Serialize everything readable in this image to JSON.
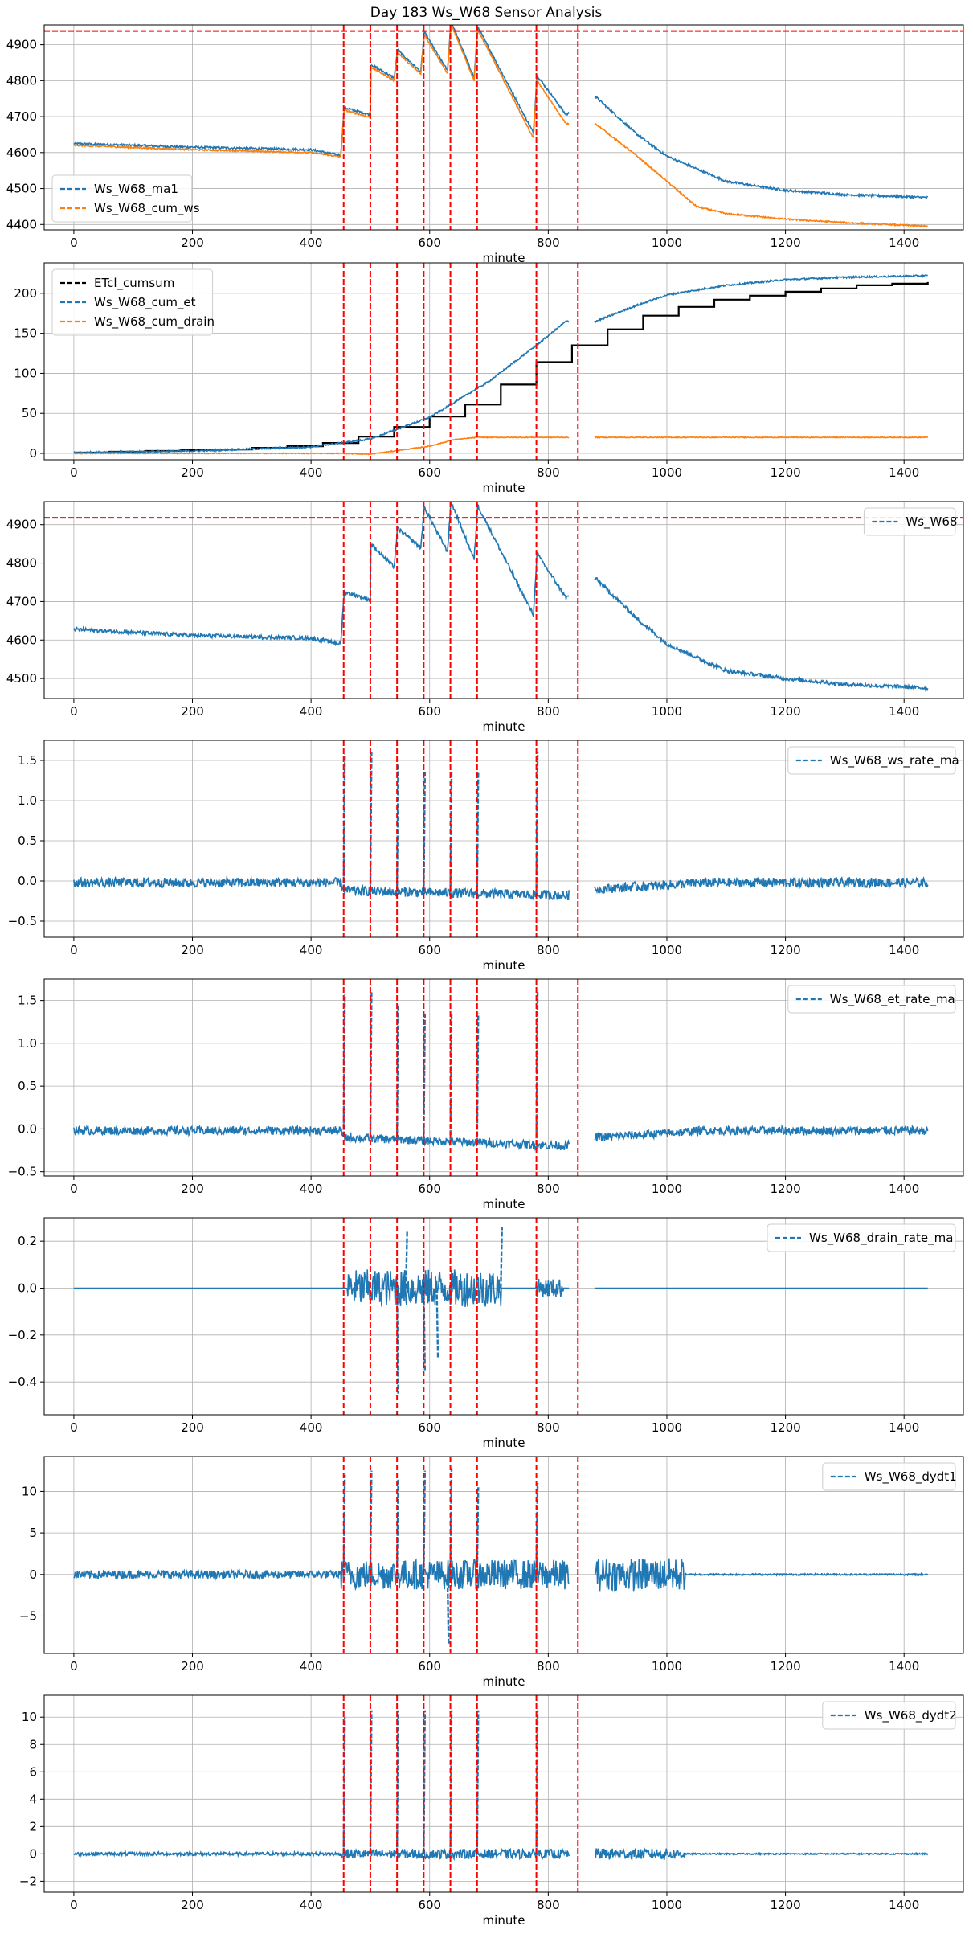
{
  "figure": {
    "title": "Day 183 Ws_W68 Sensor Analysis",
    "colors": {
      "blue": "#1f77b4",
      "orange": "#ff7f0e",
      "black": "#000000",
      "red": "#ff0000",
      "grid": "#b0b0b0"
    }
  },
  "chart_data": [
    {
      "type": "line",
      "id": "p1",
      "xlabel": "minute",
      "xlim": [
        -50,
        1500
      ],
      "ylim": [
        4385,
        4955
      ],
      "xticks": [
        0,
        200,
        400,
        600,
        800,
        1000,
        1200,
        1400
      ],
      "yticks": [
        4400,
        4500,
        4600,
        4700,
        4800,
        4900
      ],
      "legend_position": "lower-left",
      "vlines": [
        455,
        500,
        545,
        590,
        635,
        680,
        780,
        850
      ],
      "hlines": [
        4938
      ],
      "series": [
        {
          "name": "Ws_W68_ma1",
          "color": "#1f77b4",
          "noise": 3,
          "points": [
            [
              0,
              4625
            ],
            [
              200,
              4615
            ],
            [
              400,
              4608
            ],
            [
              450,
              4592
            ],
            [
              456,
              4725
            ],
            [
              500,
              4705
            ],
            [
              501,
              4845
            ],
            [
              540,
              4808
            ],
            [
              546,
              4885
            ],
            [
              585,
              4825
            ],
            [
              591,
              4935
            ],
            [
              630,
              4828
            ],
            [
              636,
              4965
            ],
            [
              675,
              4808
            ],
            [
              681,
              4950
            ],
            [
              775,
              4655
            ],
            [
              781,
              4815
            ],
            [
              830,
              4705
            ],
            [
              880,
              4755
            ],
            [
              950,
              4650
            ],
            [
              1000,
              4590
            ],
            [
              1100,
              4520
            ],
            [
              1200,
              4495
            ],
            [
              1300,
              4483
            ],
            [
              1440,
              4475
            ]
          ]
        },
        {
          "name": "Ws_W68_cum_ws",
          "color": "#ff7f0e",
          "noise": 2,
          "points": [
            [
              0,
              4620
            ],
            [
              200,
              4608
            ],
            [
              400,
              4600
            ],
            [
              450,
              4588
            ],
            [
              456,
              4718
            ],
            [
              500,
              4698
            ],
            [
              501,
              4838
            ],
            [
              540,
              4800
            ],
            [
              546,
              4878
            ],
            [
              585,
              4818
            ],
            [
              591,
              4928
            ],
            [
              630,
              4820
            ],
            [
              636,
              4958
            ],
            [
              675,
              4800
            ],
            [
              681,
              4942
            ],
            [
              775,
              4640
            ],
            [
              781,
              4800
            ],
            [
              830,
              4680
            ],
            [
              880,
              4680
            ],
            [
              950,
              4590
            ],
            [
              1000,
              4520
            ],
            [
              1050,
              4450
            ],
            [
              1100,
              4430
            ],
            [
              1200,
              4415
            ],
            [
              1300,
              4405
            ],
            [
              1440,
              4395
            ]
          ]
        }
      ]
    },
    {
      "type": "line",
      "id": "p2",
      "xlabel": "minute",
      "xlim": [
        -50,
        1500
      ],
      "ylim": [
        -8,
        238
      ],
      "xticks": [
        0,
        200,
        400,
        600,
        800,
        1000,
        1200,
        1400
      ],
      "yticks": [
        0,
        50,
        100,
        150,
        200
      ],
      "legend_position": "upper-left",
      "vlines": [
        455,
        500,
        545,
        590,
        635,
        680,
        780,
        850
      ],
      "hlines": [],
      "series": [
        {
          "name": "ETcl_cumsum",
          "color": "#000000",
          "step": true,
          "x": [
            0,
            60,
            120,
            180,
            240,
            300,
            360,
            420,
            480,
            540,
            600,
            660,
            720,
            780,
            840,
            900,
            960,
            1020,
            1080,
            1140,
            1200,
            1260,
            1320,
            1380,
            1440
          ],
          "values": [
            1,
            2,
            3,
            4,
            5,
            7,
            9,
            13,
            21,
            33,
            46,
            61,
            86,
            114,
            135,
            155,
            172,
            183,
            192,
            197,
            202,
            206,
            210,
            212,
            214
          ]
        },
        {
          "name": "Ws_W68_cum_et",
          "color": "#1f77b4",
          "noise": 1,
          "points": [
            [
              0,
              1
            ],
            [
              200,
              3
            ],
            [
              400,
              8
            ],
            [
              500,
              18
            ],
            [
              600,
              45
            ],
            [
              700,
              90
            ],
            [
              780,
              135
            ],
            [
              830,
              165
            ],
            [
              880,
              165
            ],
            [
              950,
              185
            ],
            [
              1000,
              198
            ],
            [
              1100,
              210
            ],
            [
              1200,
              217
            ],
            [
              1300,
              220
            ],
            [
              1440,
              222
            ]
          ]
        },
        {
          "name": "Ws_W68_cum_drain",
          "color": "#ff7f0e",
          "noise": 0.5,
          "points": [
            [
              0,
              0
            ],
            [
              450,
              0
            ],
            [
              500,
              -1
            ],
            [
              550,
              4
            ],
            [
              600,
              9
            ],
            [
              640,
              17
            ],
            [
              680,
              20
            ],
            [
              830,
              20
            ],
            [
              880,
              20
            ],
            [
              1440,
              20
            ]
          ]
        }
      ]
    },
    {
      "type": "line",
      "id": "p3",
      "xlabel": "minute",
      "xlim": [
        -50,
        1500
      ],
      "ylim": [
        4448,
        4960
      ],
      "xticks": [
        0,
        200,
        400,
        600,
        800,
        1000,
        1200,
        1400
      ],
      "yticks": [
        4500,
        4600,
        4700,
        4800,
        4900
      ],
      "legend_position": "upper-right",
      "vlines": [
        455,
        500,
        545,
        590,
        635,
        680,
        780,
        850
      ],
      "hlines": [
        4918
      ],
      "series": [
        {
          "name": "Ws_W68",
          "color": "#1f77b4",
          "noise": 5,
          "points": [
            [
              0,
              4628
            ],
            [
              200,
              4612
            ],
            [
              400,
              4605
            ],
            [
              450,
              4590
            ],
            [
              456,
              4725
            ],
            [
              500,
              4705
            ],
            [
              501,
              4850
            ],
            [
              540,
              4790
            ],
            [
              546,
              4890
            ],
            [
              585,
              4840
            ],
            [
              591,
              4945
            ],
            [
              630,
              4830
            ],
            [
              636,
              4960
            ],
            [
              675,
              4810
            ],
            [
              681,
              4950
            ],
            [
              775,
              4665
            ],
            [
              781,
              4825
            ],
            [
              830,
              4710
            ],
            [
              880,
              4760
            ],
            [
              950,
              4655
            ],
            [
              1000,
              4590
            ],
            [
              1100,
              4520
            ],
            [
              1200,
              4500
            ],
            [
              1300,
              4485
            ],
            [
              1440,
              4475
            ]
          ]
        }
      ]
    },
    {
      "type": "line",
      "id": "p4",
      "xlabel": "minute",
      "xlim": [
        -50,
        1500
      ],
      "ylim": [
        -0.7,
        1.75
      ],
      "xticks": [
        0,
        200,
        400,
        600,
        800,
        1000,
        1200,
        1400
      ],
      "yticks": [
        -0.5,
        0.0,
        0.5,
        1.0,
        1.5
      ],
      "legend_position": "upper-right",
      "vlines": [
        455,
        500,
        545,
        590,
        635,
        680,
        780,
        850
      ],
      "hlines": [],
      "series": [
        {
          "name": "Ws_W68_ws_rate_ma",
          "color": "#1f77b4",
          "noise": 0.06,
          "points": [
            [
              0,
              -0.02
            ],
            [
              450,
              -0.02
            ],
            [
              456,
              -0.12
            ],
            [
              830,
              -0.18
            ],
            [
              880,
              -0.1
            ],
            [
              1000,
              -0.05
            ],
            [
              1060,
              -0.02
            ],
            [
              1440,
              -0.02
            ]
          ],
          "spikes": [
            [
              455,
              1.58
            ],
            [
              500,
              1.6
            ],
            [
              545,
              1.45
            ],
            [
              590,
              1.35
            ],
            [
              635,
              1.35
            ],
            [
              680,
              1.35
            ],
            [
              780,
              1.6
            ]
          ]
        }
      ]
    },
    {
      "type": "line",
      "id": "p5",
      "xlabel": "minute",
      "xlim": [
        -50,
        1500
      ],
      "ylim": [
        -0.55,
        1.75
      ],
      "xticks": [
        0,
        200,
        400,
        600,
        800,
        1000,
        1200,
        1400
      ],
      "yticks": [
        -0.5,
        0.0,
        0.5,
        1.0,
        1.5
      ],
      "legend_position": "upper-right",
      "vlines": [
        455,
        500,
        545,
        590,
        635,
        680,
        780,
        850
      ],
      "hlines": [],
      "series": [
        {
          "name": "Ws_W68_et_rate_ma",
          "color": "#1f77b4",
          "noise": 0.05,
          "points": [
            [
              0,
              -0.02
            ],
            [
              450,
              -0.02
            ],
            [
              456,
              -0.1
            ],
            [
              830,
              -0.2
            ],
            [
              880,
              -0.1
            ],
            [
              1000,
              -0.05
            ],
            [
              1060,
              -0.02
            ],
            [
              1440,
              -0.02
            ]
          ],
          "spikes": [
            [
              455,
              1.58
            ],
            [
              500,
              1.6
            ],
            [
              545,
              1.45
            ],
            [
              590,
              1.35
            ],
            [
              635,
              1.35
            ],
            [
              680,
              1.35
            ],
            [
              780,
              1.6
            ]
          ]
        }
      ]
    },
    {
      "type": "line",
      "id": "p6",
      "xlabel": "minute",
      "xlim": [
        -50,
        1500
      ],
      "ylim": [
        -0.54,
        0.3
      ],
      "xticks": [
        0,
        200,
        400,
        600,
        800,
        1000,
        1200,
        1400
      ],
      "yticks": [
        -0.4,
        -0.2,
        0.0,
        0.2
      ],
      "legend_position": "upper-right",
      "vlines": [
        455,
        500,
        545,
        590,
        635,
        680,
        780,
        850
      ],
      "hlines": [],
      "series": [
        {
          "name": "Ws_W68_drain_rate_ma",
          "color": "#1f77b4",
          "noise": 0,
          "points": [
            [
              0,
              0
            ],
            [
              1440,
              0
            ]
          ],
          "bursts": [
            [
              460,
              720,
              0.08
            ],
            [
              780,
              825,
              0.04
            ]
          ],
          "spikes": [
            [
              545,
              -0.45
            ],
            [
              590,
              -0.35
            ],
            [
              612,
              -0.3
            ],
            [
              560,
              0.24
            ],
            [
              720,
              0.26
            ]
          ]
        }
      ]
    },
    {
      "type": "line",
      "id": "p7",
      "xlabel": "minute",
      "xlim": [
        -50,
        1500
      ],
      "ylim": [
        -9.5,
        14.2
      ],
      "xticks": [
        0,
        200,
        400,
        600,
        800,
        1000,
        1200,
        1400
      ],
      "yticks": [
        -5,
        0,
        5,
        10
      ],
      "legend_position": "upper-right",
      "vlines": [
        455,
        500,
        545,
        590,
        635,
        680,
        780,
        850
      ],
      "hlines": [],
      "series": [
        {
          "name": "Ws_W68_dydt1",
          "color": "#1f77b4",
          "noise": 0,
          "points": [
            [
              0,
              0
            ],
            [
              1440,
              0
            ]
          ],
          "bursts": [
            [
              0,
              450,
              0.5
            ],
            [
              450,
              840,
              1.8
            ],
            [
              880,
              1030,
              2.0
            ],
            [
              1030,
              1440,
              0.1
            ]
          ],
          "spikes": [
            [
              455,
              12
            ],
            [
              500,
              12.5
            ],
            [
              545,
              11.5
            ],
            [
              590,
              12.5
            ],
            [
              635,
              12.8
            ],
            [
              680,
              10.5
            ],
            [
              780,
              11
            ],
            [
              630,
              -8.5
            ]
          ]
        }
      ]
    },
    {
      "type": "line",
      "id": "p8",
      "xlabel": "minute",
      "xlim": [
        -50,
        1500
      ],
      "ylim": [
        -2.8,
        11.6
      ],
      "xticks": [
        0,
        200,
        400,
        600,
        800,
        1000,
        1200,
        1400
      ],
      "yticks": [
        -2,
        0,
        2,
        4,
        6,
        8,
        10
      ],
      "legend_position": "upper-right",
      "vlines": [
        455,
        500,
        545,
        590,
        635,
        680,
        780,
        850
      ],
      "hlines": [],
      "series": [
        {
          "name": "Ws_W68_dydt2",
          "color": "#1f77b4",
          "noise": 0,
          "points": [
            [
              0,
              0
            ],
            [
              1440,
              0
            ]
          ],
          "bursts": [
            [
              0,
              450,
              0.12
            ],
            [
              450,
              840,
              0.35
            ],
            [
              880,
              1030,
              0.4
            ],
            [
              1030,
              1440,
              0.05
            ]
          ],
          "spikes": [
            [
              455,
              10
            ],
            [
              500,
              10.5
            ],
            [
              545,
              10.5
            ],
            [
              590,
              10.5
            ],
            [
              635,
              10.5
            ],
            [
              680,
              10.5
            ],
            [
              780,
              10.5
            ]
          ]
        }
      ]
    }
  ]
}
